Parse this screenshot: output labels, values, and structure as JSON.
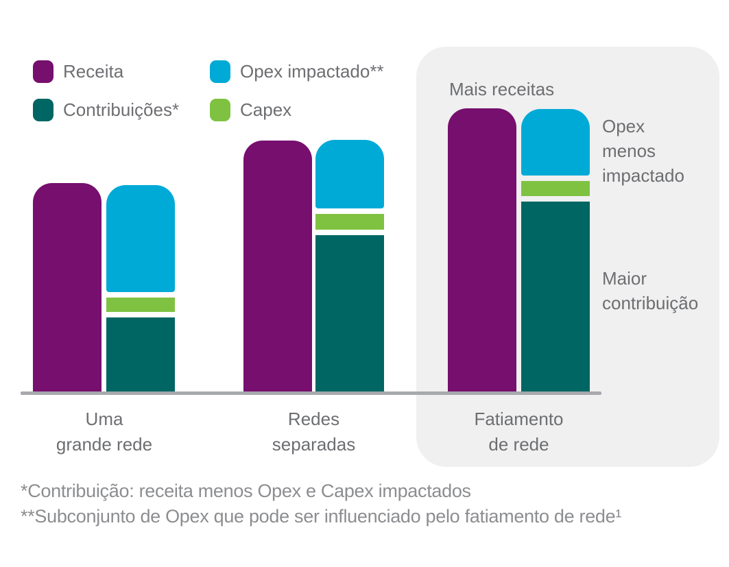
{
  "colors": {
    "receita": "#760F6E",
    "opex_impactado": "#00AAD6",
    "capex": "#7FC242",
    "contribuicoes": "#006663",
    "label_text": "#6D6E71",
    "footnote_text": "#8C8D90",
    "baseline": "#A7A9AC",
    "highlight_panel": "#F0F0F0"
  },
  "legend": {
    "items": [
      {
        "label": "Receita",
        "color_key": "receita"
      },
      {
        "label": "Opex impactado**",
        "color_key": "opex_impactado"
      },
      {
        "label": "Contribuições*",
        "color_key": "contribuicoes"
      },
      {
        "label": "Capex",
        "color_key": "capex"
      }
    ]
  },
  "chart_data": {
    "type": "bar",
    "variant": "grouped pairs: single revenue bar beside stacked bar (Opex on top, Capex middle, Contribution bottom) with white gaps between segments",
    "title": "",
    "categories": [
      "Uma grande rede",
      "Redes separadas",
      "Fatiamento de rede"
    ],
    "category_labels_two_line": [
      "Uma\ngrande rede",
      "Redes\nseparadas",
      "Fatiamento\nde rede"
    ],
    "value_unit": "relative index (tallest revenue bar = 100); no numeric axis shown",
    "axes": "none - qualitative comparison over a single gray baseline",
    "legend_position": "top-left",
    "highlighted_category": "Fatiamento de rede",
    "series": [
      {
        "name": "Receita",
        "role": "single-bar",
        "values": [
          73.5,
          88.5,
          100
        ]
      },
      {
        "name": "Opex impactado**",
        "role": "stack-top",
        "values": [
          37.8,
          24.2,
          23.5
        ]
      },
      {
        "name": "Capex",
        "role": "stack-middle",
        "values": [
          5.1,
          5.6,
          5.3
        ]
      },
      {
        "name": "Contribuições*",
        "role": "stack-bottom",
        "values": [
          26.1,
          55.2,
          67.1
        ]
      }
    ]
  },
  "annotations": {
    "mais_receitas": "Mais receitas",
    "opex_menos_impactado": "Opex\nmenos\nimpactado",
    "maior_contribuicao": "Maior\ncontribuição"
  },
  "footnotes": [
    "*Contribuição: receita menos Opex e Capex impactados",
    "**Subconjunto de Opex que pode ser influenciado pelo fatiamento de rede¹"
  ]
}
